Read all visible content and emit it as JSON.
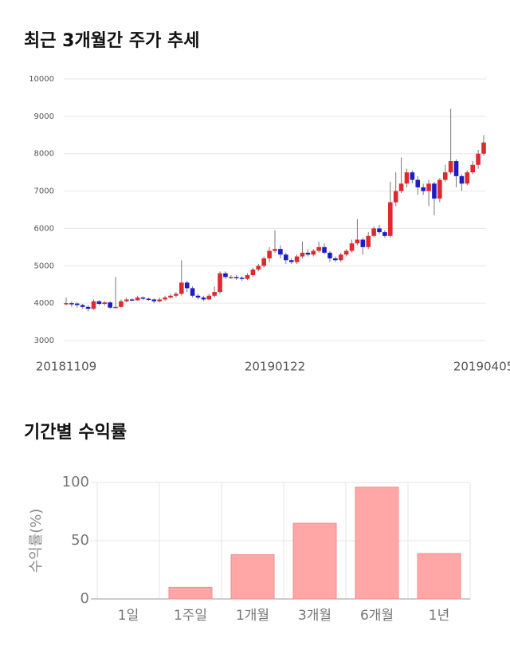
{
  "chart_data": [
    {
      "type": "candlestick",
      "title": "최근 3개월간 주가 추세",
      "categories": [
        "20181109",
        null,
        null,
        null,
        null,
        null,
        null,
        null,
        null,
        null,
        null,
        null,
        null,
        null,
        null,
        null,
        null,
        null,
        null,
        null,
        null,
        null,
        null,
        null,
        null,
        null,
        null,
        null,
        null,
        null,
        null,
        null,
        null,
        null,
        null,
        null,
        null,
        null,
        "20190122",
        null,
        null,
        null,
        null,
        null,
        null,
        null,
        null,
        null,
        null,
        null,
        null,
        null,
        null,
        null,
        null,
        null,
        null,
        null,
        null,
        null,
        null,
        null,
        null,
        null,
        null,
        null,
        null,
        null,
        null,
        null,
        null,
        null,
        null,
        null,
        null,
        null,
        "20190405"
      ],
      "open": [
        3980,
        4000,
        3990,
        3950,
        3900,
        3850,
        4050,
        3980,
        4020,
        3880,
        3900,
        4050,
        4100,
        4080,
        4150,
        4120,
        4100,
        4050,
        4100,
        4150,
        4200,
        4250,
        4550,
        4400,
        4200,
        4150,
        4100,
        4200,
        4300,
        4800,
        4700,
        4700,
        4680,
        4650,
        4750,
        4900,
        5000,
        5200,
        5400,
        5450,
        5300,
        5150,
        5100,
        5250,
        5350,
        5300,
        5400,
        5500,
        5350,
        5200,
        5150,
        5300,
        5400,
        5600,
        5700,
        5500,
        5800,
        6000,
        5900,
        5800,
        6700,
        7000,
        7200,
        7500,
        7300,
        7100,
        7000,
        7200,
        6800,
        7300,
        7500,
        7800,
        7400,
        7200,
        7500,
        7700,
        8000
      ],
      "high": [
        4150,
        4050,
        4020,
        3980,
        3950,
        4100,
        4080,
        4060,
        4050,
        4700,
        4100,
        4150,
        4130,
        4200,
        4180,
        4150,
        4130,
        4150,
        4200,
        4250,
        4300,
        5150,
        4600,
        4450,
        4250,
        4200,
        4250,
        4450,
        4850,
        4850,
        4750,
        4750,
        4720,
        4800,
        4950,
        5050,
        5250,
        5500,
        5950,
        5550,
        5350,
        5200,
        5300,
        5650,
        5450,
        5450,
        5650,
        5600,
        5400,
        5250,
        5350,
        5450,
        5700,
        6250,
        5750,
        5900,
        6050,
        6100,
        5950,
        7250,
        7500,
        7900,
        7600,
        7550,
        7400,
        7200,
        7300,
        7250,
        7350,
        7700,
        9200,
        7850,
        7450,
        7550,
        7800,
        8100,
        8500
      ],
      "low": [
        3950,
        3900,
        3880,
        3850,
        3780,
        3820,
        3950,
        3940,
        3850,
        3860,
        3880,
        4020,
        4050,
        4060,
        4080,
        4060,
        4000,
        4020,
        4060,
        4120,
        4150,
        4200,
        4300,
        4150,
        4100,
        4050,
        4080,
        4150,
        4250,
        4650,
        4650,
        4620,
        4600,
        4620,
        4700,
        4850,
        4950,
        5100,
        5350,
        5200,
        5050,
        5050,
        5050,
        5200,
        5250,
        5250,
        5350,
        5300,
        5100,
        5100,
        5100,
        5250,
        5350,
        5550,
        5300,
        5450,
        5750,
        5850,
        5750,
        5750,
        6600,
        6950,
        7100,
        7200,
        6900,
        6900,
        6600,
        6350,
        6700,
        7250,
        7450,
        7100,
        7000,
        7150,
        7450,
        7600,
        7950
      ],
      "close": [
        4000,
        3990,
        3950,
        3900,
        3850,
        4050,
        3980,
        4020,
        3880,
        3900,
        4050,
        4100,
        4080,
        4150,
        4120,
        4100,
        4050,
        4100,
        4150,
        4200,
        4250,
        4550,
        4400,
        4200,
        4150,
        4100,
        4200,
        4300,
        4800,
        4700,
        4700,
        4680,
        4650,
        4750,
        4900,
        5000,
        5200,
        5400,
        5450,
        5300,
        5150,
        5100,
        5250,
        5350,
        5300,
        5400,
        5500,
        5350,
        5200,
        5150,
        5300,
        5400,
        5600,
        5700,
        5500,
        5800,
        6000,
        5900,
        5800,
        6700,
        7000,
        7200,
        7500,
        7300,
        7100,
        7000,
        7200,
        6800,
        7300,
        7500,
        7800,
        7400,
        7200,
        7500,
        7700,
        8000,
        8300
      ],
      "up_color": "#e0282e",
      "down_color": "#1c1cc8",
      "ylim": [
        3000,
        10000
      ],
      "yticks": [
        3000,
        4000,
        5000,
        6000,
        7000,
        8000,
        9000,
        10000
      ],
      "grid": true
    },
    {
      "type": "bar",
      "title": "기간별 수익률",
      "y_label": "수익률(%)",
      "categories": [
        "1일",
        "1주일",
        "1개월",
        "3개월",
        "6개월",
        "1년"
      ],
      "values": [
        0,
        10,
        38,
        65,
        96,
        39
      ],
      "color": "#ffa7a7",
      "ylim": [
        0,
        100
      ],
      "yticks": [
        0,
        50,
        100
      ],
      "grid": true
    }
  ]
}
